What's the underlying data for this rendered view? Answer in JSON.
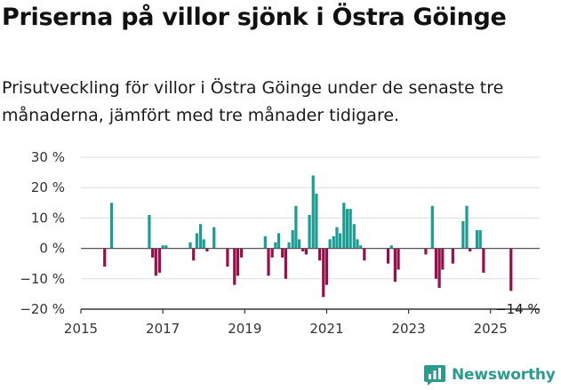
{
  "title": "Priserna på villor sjönk i Östra Göinge",
  "subtitle": "Prisutveckling för villor i Östra Göinge under de senaste tre månaderna, jämfört med tre månader tidigare.",
  "brand": {
    "name": "Newsworthy",
    "icon": "newsworthy-logo-icon"
  },
  "colors": {
    "positive": "#1a9e93",
    "negative": "#980f4c",
    "grid": "#dddddd",
    "axis": "#333333"
  },
  "chart_data": {
    "type": "bar",
    "title": "",
    "xlabel": "",
    "ylabel": "",
    "ylim": [
      -20,
      30
    ],
    "xlim": [
      2015.0,
      2026.2
    ],
    "y_ticks": [
      30,
      20,
      10,
      0,
      -10,
      -20
    ],
    "y_tick_labels": [
      "30 %",
      "20 %",
      "10 %",
      "0 %",
      "−10 %",
      "−20 %"
    ],
    "x_ticks": [
      2015,
      2017,
      2019,
      2021,
      2023,
      2025
    ],
    "x_tick_labels": [
      "2015",
      "2017",
      "2019",
      "2021",
      "2023",
      "2025"
    ],
    "grid": true,
    "last_value_label": "−14 %",
    "points": [
      {
        "x": 2015.58,
        "y": -6
      },
      {
        "x": 2015.75,
        "y": 15
      },
      {
        "x": 2016.67,
        "y": 11
      },
      {
        "x": 2016.75,
        "y": -3
      },
      {
        "x": 2016.83,
        "y": -9
      },
      {
        "x": 2016.92,
        "y": -8
      },
      {
        "x": 2017.0,
        "y": 1
      },
      {
        "x": 2017.08,
        "y": 1
      },
      {
        "x": 2017.67,
        "y": 2
      },
      {
        "x": 2017.75,
        "y": -4
      },
      {
        "x": 2017.83,
        "y": 5
      },
      {
        "x": 2017.92,
        "y": 8
      },
      {
        "x": 2018.0,
        "y": 3
      },
      {
        "x": 2018.08,
        "y": -1
      },
      {
        "x": 2018.25,
        "y": 7
      },
      {
        "x": 2018.58,
        "y": -6
      },
      {
        "x": 2018.75,
        "y": -12
      },
      {
        "x": 2018.83,
        "y": -9
      },
      {
        "x": 2018.92,
        "y": -3
      },
      {
        "x": 2019.5,
        "y": 4
      },
      {
        "x": 2019.58,
        "y": -9
      },
      {
        "x": 2019.67,
        "y": -3
      },
      {
        "x": 2019.75,
        "y": 2
      },
      {
        "x": 2019.83,
        "y": 5
      },
      {
        "x": 2019.92,
        "y": -3
      },
      {
        "x": 2020.0,
        "y": -10
      },
      {
        "x": 2020.08,
        "y": 2
      },
      {
        "x": 2020.17,
        "y": 6
      },
      {
        "x": 2020.25,
        "y": 14
      },
      {
        "x": 2020.33,
        "y": 3
      },
      {
        "x": 2020.42,
        "y": -1
      },
      {
        "x": 2020.5,
        "y": -2
      },
      {
        "x": 2020.58,
        "y": 11
      },
      {
        "x": 2020.67,
        "y": 24
      },
      {
        "x": 2020.75,
        "y": 18
      },
      {
        "x": 2020.83,
        "y": -4
      },
      {
        "x": 2020.92,
        "y": -16
      },
      {
        "x": 2021.0,
        "y": -12
      },
      {
        "x": 2021.08,
        "y": 3
      },
      {
        "x": 2021.17,
        "y": 4
      },
      {
        "x": 2021.25,
        "y": 7
      },
      {
        "x": 2021.33,
        "y": 5
      },
      {
        "x": 2021.42,
        "y": 15
      },
      {
        "x": 2021.5,
        "y": 13
      },
      {
        "x": 2021.58,
        "y": 13
      },
      {
        "x": 2021.67,
        "y": 8
      },
      {
        "x": 2021.75,
        "y": 3
      },
      {
        "x": 2021.83,
        "y": 1
      },
      {
        "x": 2021.92,
        "y": -4
      },
      {
        "x": 2022.5,
        "y": -5
      },
      {
        "x": 2022.58,
        "y": 1
      },
      {
        "x": 2022.67,
        "y": -11
      },
      {
        "x": 2022.75,
        "y": -7
      },
      {
        "x": 2023.42,
        "y": -2
      },
      {
        "x": 2023.58,
        "y": 14
      },
      {
        "x": 2023.67,
        "y": -10
      },
      {
        "x": 2023.75,
        "y": -13
      },
      {
        "x": 2023.83,
        "y": -7
      },
      {
        "x": 2024.08,
        "y": -5
      },
      {
        "x": 2024.33,
        "y": 9
      },
      {
        "x": 2024.42,
        "y": 14
      },
      {
        "x": 2024.5,
        "y": -1
      },
      {
        "x": 2024.67,
        "y": 6
      },
      {
        "x": 2024.75,
        "y": 6
      },
      {
        "x": 2024.83,
        "y": -8
      },
      {
        "x": 2025.5,
        "y": -14
      }
    ]
  }
}
